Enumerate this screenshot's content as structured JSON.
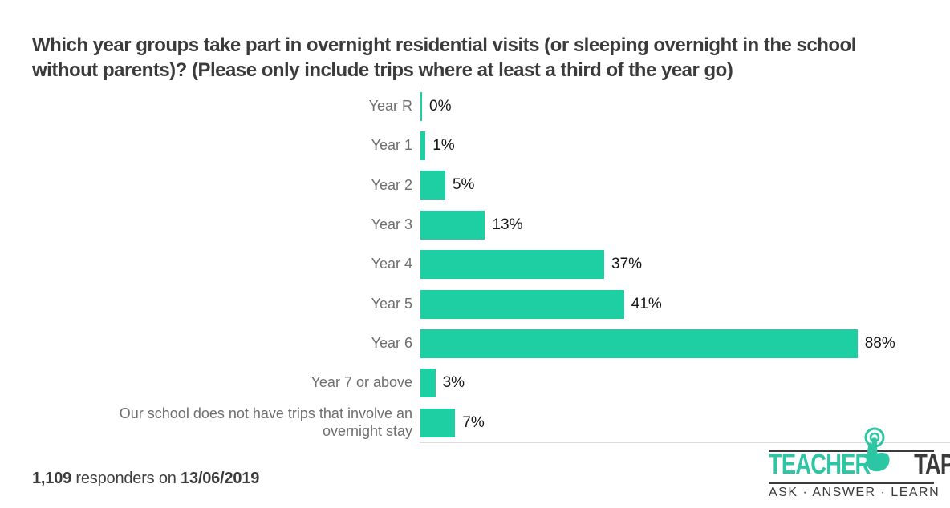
{
  "chart_data": {
    "type": "bar",
    "orientation": "horizontal",
    "title": "Which year groups take part in overnight residential visits (or sleeping overnight in the school without parents)? (Please only include trips where at least a third of the year go)",
    "categories": [
      "Year R",
      "Year 1",
      "Year 2",
      "Year 3",
      "Year 4",
      "Year 5",
      "Year 6",
      "Year 7 or above",
      "Our school does not have trips that involve an overnight stay"
    ],
    "values": [
      0,
      1,
      5,
      13,
      37,
      41,
      88,
      3,
      7
    ],
    "value_labels": [
      "0%",
      "1%",
      "5%",
      "13%",
      "37%",
      "41%",
      "88%",
      "3%",
      "7%"
    ],
    "xlim": [
      0,
      100
    ],
    "grid": false,
    "legend": "none",
    "bar_color": "#1fcfa4",
    "axis_color": "#dcdcdc",
    "category_label_color": "#6e6e6e",
    "value_label_color": "#141414",
    "title_color": "#3b3b3b"
  },
  "footer": {
    "responders_count": "1,109",
    "middle": "responders on",
    "date": "13/06/2019"
  },
  "logo": {
    "brand_left": "TEACHER",
    "brand_right": "TAPP",
    "tagline": "ASK · ANSWER · LEARN",
    "teal": "#2bc7a4",
    "dark": "#3a3a3a"
  }
}
